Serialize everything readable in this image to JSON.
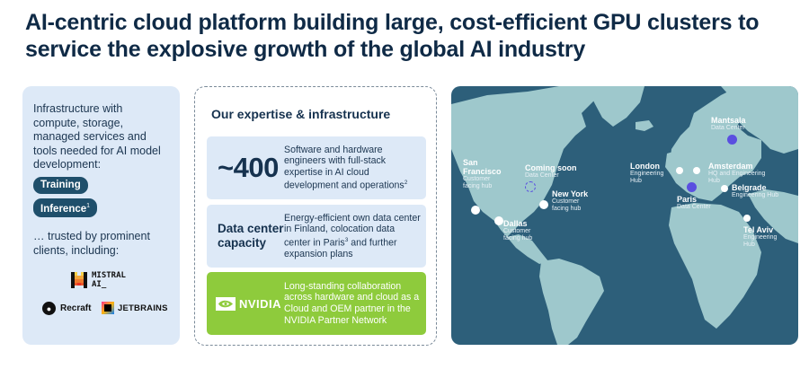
{
  "title": "AI-centric cloud platform building large, cost-efficient GPU clusters to service the explosive growth of the global AI industry",
  "left_panel": {
    "intro": "Infrastructure with compute, storage, managed services and tools needed for AI model development:",
    "pills": [
      {
        "label": "Training",
        "sup": ""
      },
      {
        "label": "Inference",
        "sup": "1"
      }
    ],
    "trusted": "… trusted by prominent clients, including:",
    "logos": {
      "mistral": "MISTRAL AI_",
      "recraft": "Recraft",
      "jetbrains": "JETBRAINS"
    }
  },
  "middle_panel": {
    "heading": "Our expertise & infrastructure",
    "cards": [
      {
        "big": "~400",
        "text": "Software and hardware engineers with full-stack expertise in AI cloud development and operations",
        "sup": "2"
      },
      {
        "big": "Data center capacity",
        "text_a": "Energy-efficient own data center in Finland, colocation data center in Paris",
        "sup": "3",
        "text_b": " and further expansion plans"
      },
      {
        "logo": "NVIDIA",
        "text": "Long-standing collaboration across hardware and cloud as a Cloud and OEM partner in the NVIDIA Partner Network"
      }
    ]
  },
  "map": {
    "locations": [
      {
        "name": "San Francisco",
        "desc": "Customer facing hub"
      },
      {
        "name": "Coming soon",
        "desc": "Data Center"
      },
      {
        "name": "New York",
        "desc": "Customer facing hub"
      },
      {
        "name": "Dallas",
        "desc": "Customer facing hub"
      },
      {
        "name": "London",
        "desc": "Engineering Hub"
      },
      {
        "name": "Mantsala",
        "desc": "Data Center"
      },
      {
        "name": "Amsterdam",
        "desc": "HQ and Engineering Hub"
      },
      {
        "name": "Belgrade",
        "desc": "Engineering Hub"
      },
      {
        "name": "Paris",
        "desc": "Data Center"
      },
      {
        "name": "Tel Aviv",
        "desc": "Engineering Hub"
      }
    ]
  }
}
